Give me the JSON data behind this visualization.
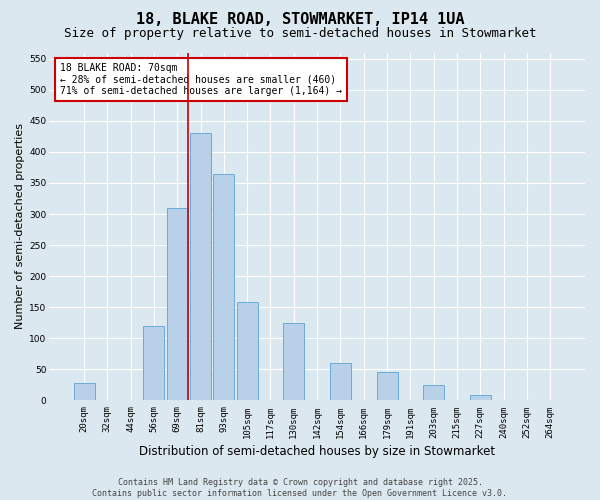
{
  "title1": "18, BLAKE ROAD, STOWMARKET, IP14 1UA",
  "title2": "Size of property relative to semi-detached houses in Stowmarket",
  "xlabel": "Distribution of semi-detached houses by size in Stowmarket",
  "ylabel": "Number of semi-detached properties",
  "categories": [
    "20sqm",
    "32sqm",
    "44sqm",
    "56sqm",
    "69sqm",
    "81sqm",
    "93sqm",
    "105sqm",
    "117sqm",
    "130sqm",
    "142sqm",
    "154sqm",
    "166sqm",
    "179sqm",
    "191sqm",
    "203sqm",
    "215sqm",
    "227sqm",
    "240sqm",
    "252sqm",
    "264sqm"
  ],
  "values": [
    28,
    0,
    0,
    120,
    310,
    430,
    365,
    158,
    0,
    125,
    0,
    60,
    0,
    45,
    0,
    25,
    0,
    8,
    0,
    0,
    0
  ],
  "bar_color": "#b8d0e8",
  "bar_edge_color": "#6aabdb",
  "background_color": "#dce8f0",
  "grid_color": "#ffffff",
  "red_line_color": "#cc0000",
  "annotation_text": "18 BLAKE ROAD: 70sqm\n← 28% of semi-detached houses are smaller (460)\n71% of semi-detached houses are larger (1,164) →",
  "annotation_box_color": "#ffffff",
  "annotation_box_edge": "#cc0000",
  "ylim": [
    0,
    560
  ],
  "yticks": [
    0,
    50,
    100,
    150,
    200,
    250,
    300,
    350,
    400,
    450,
    500,
    550
  ],
  "footer_text": "Contains HM Land Registry data © Crown copyright and database right 2025.\nContains public sector information licensed under the Open Government Licence v3.0.",
  "title_fontsize": 11,
  "subtitle_fontsize": 9,
  "tick_fontsize": 6.5,
  "ylabel_fontsize": 8,
  "xlabel_fontsize": 8.5
}
